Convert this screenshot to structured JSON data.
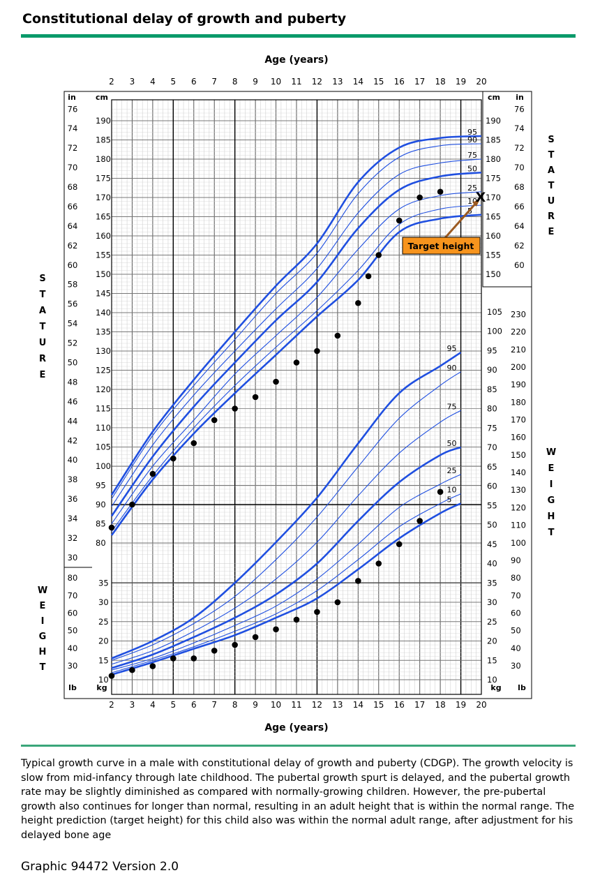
{
  "header": {
    "title": "Constitutional delay of growth and puberty"
  },
  "caption": "Typical growth curve in a male with constitutional delay of growth and puberty (CDGP). The growth velocity is slow from mid-infancy through late childhood. The pubertal growth spurt is delayed, and the pubertal growth rate may be slightly diminished as compared with normally-growing children. However, the pre-pubertal growth also continues for longer than normal, resulting in an adult height that is within the normal range. The height prediction (target height) for this child also was within the normal adult range, after adjustment for his delayed bone age",
  "graphic_id": "Graphic 94472 Version 2.0",
  "colors": {
    "accent": "#0a9a6a",
    "curve": "#1f4fe0",
    "point": "#000000",
    "target_box": "#f7941d",
    "arrow": "#9b5a22"
  },
  "chart_data": {
    "type": "line",
    "title": "",
    "xlabel": "Age (years)",
    "xlim": [
      2,
      20
    ],
    "x_ticks": [
      2,
      3,
      4,
      5,
      6,
      7,
      8,
      9,
      10,
      11,
      12,
      13,
      14,
      15,
      16,
      17,
      18,
      19,
      20
    ],
    "stature": {
      "side_label": "STATURE",
      "ylabel_cm": "cm",
      "ylabel_in": "in",
      "ylim_cm": [
        76,
        194
      ],
      "cm_ticks": [
        80,
        85,
        90,
        95,
        100,
        105,
        110,
        115,
        120,
        125,
        130,
        135,
        140,
        145,
        150,
        155,
        160,
        165,
        170,
        175,
        180,
        185,
        190
      ],
      "in_ticks": [
        30,
        32,
        34,
        36,
        38,
        40,
        42,
        44,
        46,
        48,
        50,
        52,
        54,
        56,
        58,
        60,
        62,
        64,
        66,
        68,
        70,
        72,
        74,
        76
      ],
      "right_cm_ticks": [
        150,
        155,
        160,
        165,
        170,
        175,
        180,
        185,
        190
      ],
      "right_in_ticks": [
        60,
        62,
        64,
        66,
        68,
        70,
        72,
        74,
        76
      ],
      "percentile_labels": [
        "95",
        "90",
        "75",
        "50",
        "25",
        "10",
        "5"
      ],
      "series": [
        {
          "name": "95",
          "bold": true,
          "values": [
            [
              2,
              92.5
            ],
            [
              4,
              109
            ],
            [
              6,
              122.5
            ],
            [
              8,
              135
            ],
            [
              10,
              147
            ],
            [
              12,
              158
            ],
            [
              14,
              174
            ],
            [
              16,
              183
            ],
            [
              18,
              185.5
            ],
            [
              20,
              186
            ]
          ]
        },
        {
          "name": "90",
          "bold": false,
          "values": [
            [
              2,
              91.5
            ],
            [
              4,
              108
            ],
            [
              6,
              121
            ],
            [
              8,
              133
            ],
            [
              10,
              145
            ],
            [
              12,
              155.5
            ],
            [
              14,
              171
            ],
            [
              16,
              180.5
            ],
            [
              18,
              183.5
            ],
            [
              20,
              184
            ]
          ]
        },
        {
          "name": "75",
          "bold": false,
          "values": [
            [
              2,
              89.5
            ],
            [
              4,
              105.5
            ],
            [
              6,
              118.5
            ],
            [
              8,
              130
            ],
            [
              10,
              141
            ],
            [
              12,
              151.5
            ],
            [
              14,
              166
            ],
            [
              16,
              176
            ],
            [
              18,
              179
            ],
            [
              20,
              180
            ]
          ]
        },
        {
          "name": "50",
          "bold": true,
          "values": [
            [
              2,
              87
            ],
            [
              4,
              102.5
            ],
            [
              6,
              115.5
            ],
            [
              8,
              127
            ],
            [
              10,
              138
            ],
            [
              12,
              148
            ],
            [
              14,
              162
            ],
            [
              16,
              172
            ],
            [
              18,
              175.5
            ],
            [
              20,
              176.5
            ]
          ]
        },
        {
          "name": "25",
          "bold": false,
          "values": [
            [
              2,
              85
            ],
            [
              4,
              100
            ],
            [
              6,
              112
            ],
            [
              8,
              124
            ],
            [
              10,
              134
            ],
            [
              12,
              144
            ],
            [
              14,
              156.5
            ],
            [
              16,
              167
            ],
            [
              18,
              170.5
            ],
            [
              20,
              171.5
            ]
          ]
        },
        {
          "name": "10",
          "bold": false,
          "values": [
            [
              2,
              83
            ],
            [
              4,
              97.5
            ],
            [
              6,
              110
            ],
            [
              8,
              121
            ],
            [
              10,
              131
            ],
            [
              12,
              140.5
            ],
            [
              14,
              151
            ],
            [
              16,
              163
            ],
            [
              18,
              167
            ],
            [
              20,
              168
            ]
          ]
        },
        {
          "name": "5",
          "bold": true,
          "values": [
            [
              2,
              82
            ],
            [
              4,
              96.5
            ],
            [
              6,
              108.5
            ],
            [
              8,
              119
            ],
            [
              10,
              129
            ],
            [
              12,
              139
            ],
            [
              14,
              148.5
            ],
            [
              16,
              161
            ],
            [
              18,
              164.5
            ],
            [
              20,
              165.5
            ]
          ]
        }
      ],
      "points": [
        [
          2,
          84
        ],
        [
          3,
          90
        ],
        [
          4,
          98
        ],
        [
          5,
          102
        ],
        [
          6,
          106
        ],
        [
          7,
          112
        ],
        [
          8,
          115
        ],
        [
          9,
          118
        ],
        [
          10,
          122
        ],
        [
          11,
          127
        ],
        [
          12,
          130
        ],
        [
          13,
          134
        ],
        [
          14,
          142.5
        ],
        [
          14.5,
          149.5
        ],
        [
          15,
          155
        ],
        [
          16,
          164
        ],
        [
          17,
          170
        ],
        [
          18,
          171.5
        ]
      ],
      "target_height": {
        "label": "Target height",
        "marker": "X",
        "age": 20,
        "cm": 170
      }
    },
    "weight": {
      "side_label": "WEIGHT",
      "ylabel_kg": "kg",
      "ylabel_lb": "lb",
      "ylim_kg": [
        9,
        103
      ],
      "kg_ticks": [
        10,
        15,
        20,
        25,
        30,
        35,
        40,
        45,
        50,
        55,
        60,
        65,
        70,
        75,
        80,
        85,
        90,
        95,
        100,
        105
      ],
      "lb_ticks_left": [
        30,
        40,
        50,
        60,
        70,
        80
      ],
      "lb_ticks_right": [
        30,
        40,
        50,
        60,
        70,
        80,
        90,
        100,
        110,
        120,
        130,
        140,
        150,
        160,
        170,
        180,
        190,
        200,
        210,
        220,
        230
      ],
      "left_kg_ticks": [
        10,
        15,
        20,
        25,
        30,
        35
      ],
      "percentile_labels": [
        "95",
        "90",
        "75",
        "50",
        "25",
        "10",
        "5"
      ],
      "series": [
        {
          "name": "95",
          "bold": true,
          "values": [
            [
              2,
              15.5
            ],
            [
              4,
              20
            ],
            [
              6,
              26
            ],
            [
              8,
              35
            ],
            [
              10,
              45.5
            ],
            [
              12,
              57
            ],
            [
              14,
              71
            ],
            [
              16,
              84
            ],
            [
              18,
              91
            ],
            [
              19,
              94.5
            ]
          ]
        },
        {
          "name": "90",
          "bold": false,
          "values": [
            [
              2,
              15
            ],
            [
              4,
              19
            ],
            [
              6,
              24.5
            ],
            [
              8,
              31.5
            ],
            [
              10,
              41
            ],
            [
              12,
              52
            ],
            [
              14,
              65
            ],
            [
              16,
              77.5
            ],
            [
              18,
              86
            ],
            [
              19,
              89.5
            ]
          ]
        },
        {
          "name": "75",
          "bold": false,
          "values": [
            [
              2,
              14
            ],
            [
              4,
              17.5
            ],
            [
              6,
              22.5
            ],
            [
              8,
              28.5
            ],
            [
              10,
              36
            ],
            [
              12,
              45.5
            ],
            [
              14,
              57.5
            ],
            [
              16,
              68.5
            ],
            [
              18,
              76.5
            ],
            [
              19,
              79.5
            ]
          ]
        },
        {
          "name": "50",
          "bold": true,
          "values": [
            [
              2,
              13
            ],
            [
              4,
              16.5
            ],
            [
              6,
              21
            ],
            [
              8,
              26
            ],
            [
              10,
              32
            ],
            [
              12,
              40
            ],
            [
              14,
              51
            ],
            [
              16,
              61
            ],
            [
              18,
              68
            ],
            [
              19,
              70
            ]
          ]
        },
        {
          "name": "25",
          "bold": false,
          "values": [
            [
              2,
              12.5
            ],
            [
              4,
              15.5
            ],
            [
              6,
              19.5
            ],
            [
              8,
              24
            ],
            [
              10,
              29
            ],
            [
              12,
              36
            ],
            [
              14,
              45
            ],
            [
              16,
              54.5
            ],
            [
              18,
              60.5
            ],
            [
              19,
              63
            ]
          ]
        },
        {
          "name": "10",
          "bold": false,
          "values": [
            [
              2,
              11.8
            ],
            [
              4,
              15
            ],
            [
              6,
              18.5
            ],
            [
              8,
              22.5
            ],
            [
              10,
              27
            ],
            [
              12,
              33
            ],
            [
              14,
              41
            ],
            [
              16,
              49.5
            ],
            [
              18,
              55.5
            ],
            [
              19,
              58
            ]
          ]
        },
        {
          "name": "5",
          "bold": true,
          "values": [
            [
              2,
              11.3
            ],
            [
              4,
              14.5
            ],
            [
              6,
              18
            ],
            [
              8,
              21.5
            ],
            [
              10,
              26
            ],
            [
              12,
              31
            ],
            [
              14,
              38.5
            ],
            [
              16,
              46.5
            ],
            [
              18,
              53
            ],
            [
              19,
              55.5
            ]
          ]
        }
      ],
      "points": [
        [
          2,
          11
        ],
        [
          3,
          12.5
        ],
        [
          4,
          13.5
        ],
        [
          5,
          15.5
        ],
        [
          6,
          15.5
        ],
        [
          7,
          17.5
        ],
        [
          8,
          19
        ],
        [
          9,
          21
        ],
        [
          10,
          23
        ],
        [
          11,
          25.5
        ],
        [
          12,
          27.5
        ],
        [
          13,
          30
        ],
        [
          14,
          35.5
        ],
        [
          15,
          40
        ],
        [
          16,
          45
        ],
        [
          17,
          51
        ],
        [
          18,
          58.5
        ]
      ]
    }
  }
}
